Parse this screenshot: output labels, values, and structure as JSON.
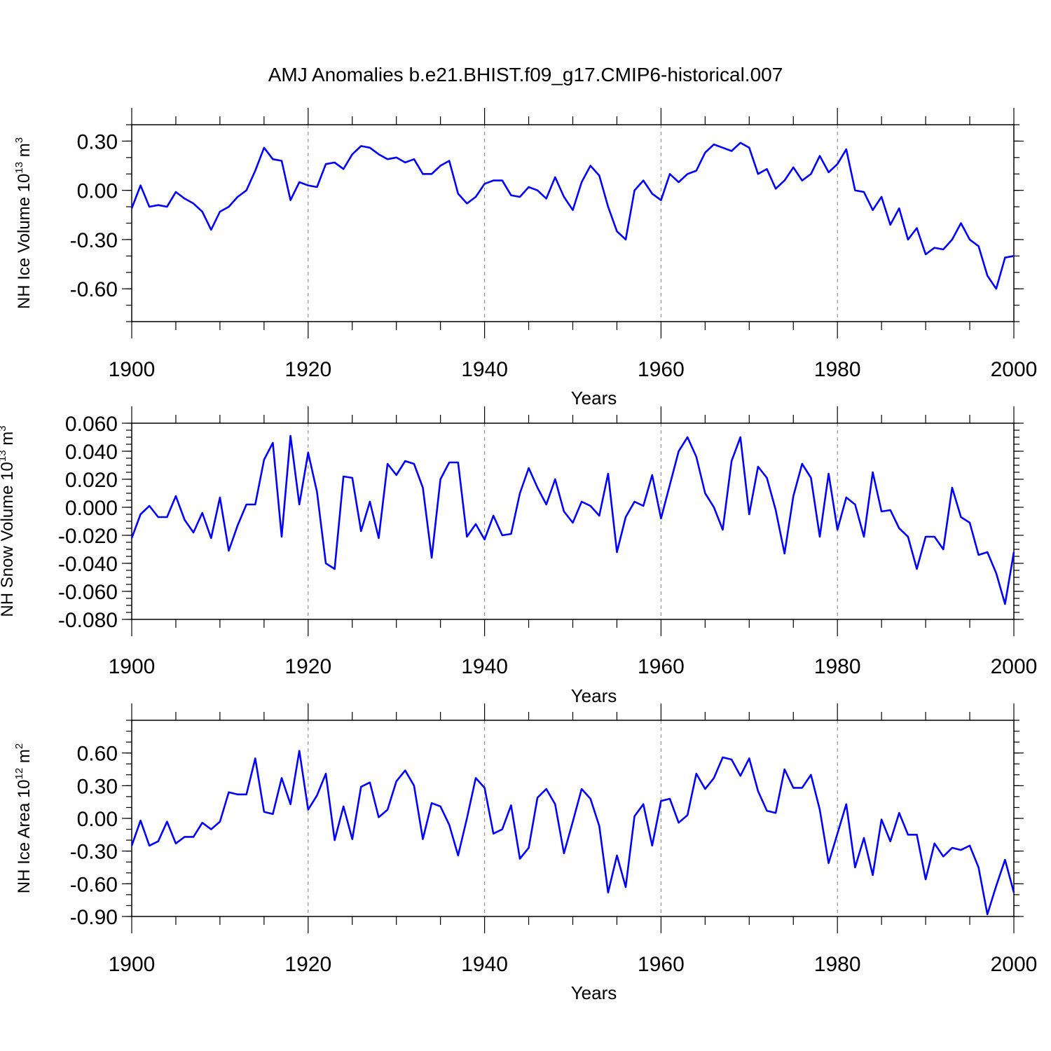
{
  "title": "AMJ Anomalies b.e21.BHIST.f09_g17.CMIP6-historical.007",
  "chart_data": [
    {
      "type": "line",
      "ylabel": "NH Ice Volume 10",
      "ylabel_sup": "13",
      "ylabel_unit": " m",
      "ylabel_unit_sup": "3",
      "xlabel": "Years",
      "xlim": [
        1900,
        2000
      ],
      "ylim": [
        -0.8,
        0.4
      ],
      "x_ticks": [
        1900,
        1920,
        1940,
        1960,
        1980,
        2000
      ],
      "y_ticks": [
        0.3,
        0.0,
        -0.3,
        -0.6
      ],
      "y_tick_labels": [
        "0.30",
        "0.00",
        "-0.30",
        "-0.60"
      ],
      "y_minor_step": 0.1,
      "grid": "vertical dashed at major x ticks",
      "series_color": "#0000ff",
      "x_start": 1900,
      "values": [
        -0.11,
        0.03,
        -0.1,
        -0.09,
        -0.1,
        -0.01,
        -0.05,
        -0.08,
        -0.13,
        -0.24,
        -0.13,
        -0.1,
        -0.04,
        0.0,
        0.12,
        0.26,
        0.19,
        0.18,
        -0.06,
        0.05,
        0.03,
        0.02,
        0.16,
        0.17,
        0.13,
        0.22,
        0.27,
        0.26,
        0.22,
        0.19,
        0.2,
        0.17,
        0.19,
        0.1,
        0.1,
        0.15,
        0.18,
        -0.02,
        -0.08,
        -0.04,
        0.04,
        0.06,
        0.06,
        -0.03,
        -0.04,
        0.02,
        0.0,
        -0.05,
        0.08,
        -0.04,
        -0.12,
        0.05,
        0.15,
        0.09,
        -0.1,
        -0.25,
        -0.3,
        0.0,
        0.06,
        -0.02,
        -0.06,
        0.1,
        0.05,
        0.1,
        0.12,
        0.23,
        0.28,
        0.26,
        0.24,
        0.29,
        0.26,
        0.1,
        0.13,
        0.01,
        0.06,
        0.14,
        0.06,
        0.1,
        0.21,
        0.11,
        0.16,
        0.25,
        0.0,
        -0.01,
        -0.12,
        -0.04,
        -0.21,
        -0.11,
        -0.3,
        -0.23,
        -0.39,
        -0.35,
        -0.36,
        -0.3,
        -0.2,
        -0.3,
        -0.34,
        -0.52,
        -0.6,
        -0.41,
        -0.4
      ]
    },
    {
      "type": "line",
      "ylabel": "NH Snow Volume 10",
      "ylabel_sup": "13",
      "ylabel_unit": " m",
      "ylabel_unit_sup": "3",
      "xlabel": "Years",
      "xlim": [
        1900,
        2000
      ],
      "ylim": [
        -0.08,
        0.06
      ],
      "x_ticks": [
        1900,
        1920,
        1940,
        1960,
        1980,
        2000
      ],
      "y_ticks": [
        0.06,
        0.04,
        0.02,
        0.0,
        -0.02,
        -0.04,
        -0.06,
        -0.08
      ],
      "y_tick_labels": [
        "0.060",
        "0.040",
        "0.020",
        "0.000",
        "-0.020",
        "-0.040",
        "-0.060",
        "-0.080"
      ],
      "y_minor_step": 0.005,
      "grid": "vertical dashed at major x ticks",
      "series_color": "#0000ff",
      "x_start": 1900,
      "values": [
        -0.022,
        -0.005,
        0.001,
        -0.007,
        -0.007,
        0.008,
        -0.009,
        -0.018,
        -0.004,
        -0.022,
        0.007,
        -0.031,
        -0.013,
        0.002,
        0.002,
        0.034,
        0.046,
        -0.021,
        0.051,
        0.002,
        0.039,
        0.011,
        -0.04,
        -0.044,
        0.022,
        0.021,
        -0.017,
        0.004,
        -0.022,
        0.031,
        0.023,
        0.033,
        0.031,
        0.014,
        -0.036,
        0.02,
        0.032,
        0.032,
        -0.021,
        -0.012,
        -0.023,
        -0.006,
        -0.02,
        -0.019,
        0.01,
        0.028,
        0.014,
        0.002,
        0.02,
        -0.003,
        -0.011,
        0.004,
        0.001,
        -0.006,
        0.024,
        -0.032,
        -0.007,
        0.004,
        0.001,
        0.023,
        -0.008,
        0.016,
        0.04,
        0.05,
        0.036,
        0.01,
        0.0,
        -0.016,
        0.033,
        0.05,
        -0.005,
        0.029,
        0.021,
        -0.002,
        -0.033,
        0.008,
        0.031,
        0.021,
        -0.021,
        0.024,
        -0.016,
        0.007,
        0.002,
        -0.021,
        0.025,
        -0.003,
        -0.002,
        -0.015,
        -0.021,
        -0.044,
        -0.021,
        -0.021,
        -0.03,
        0.014,
        -0.007,
        -0.011,
        -0.034,
        -0.032,
        -0.047,
        -0.069,
        -0.032
      ]
    },
    {
      "type": "line",
      "ylabel": "NH Ice Area 10",
      "ylabel_sup": "12",
      "ylabel_unit": " m",
      "ylabel_unit_sup": "2",
      "xlabel": "Years",
      "xlim": [
        1900,
        2000
      ],
      "ylim": [
        -0.9,
        0.9
      ],
      "x_ticks": [
        1900,
        1920,
        1940,
        1960,
        1980,
        2000
      ],
      "y_ticks": [
        0.6,
        0.3,
        0.0,
        -0.3,
        -0.6,
        -0.9
      ],
      "y_tick_labels": [
        "0.60",
        "0.30",
        "0.00",
        "-0.30",
        "-0.60",
        "-0.90"
      ],
      "y_minor_step": 0.1,
      "grid": "vertical dashed at major x ticks",
      "series_color": "#0000ff",
      "x_start": 1900,
      "values": [
        -0.25,
        -0.02,
        -0.25,
        -0.21,
        -0.03,
        -0.23,
        -0.17,
        -0.17,
        -0.04,
        -0.1,
        -0.03,
        0.24,
        0.22,
        0.22,
        0.55,
        0.06,
        0.04,
        0.37,
        0.13,
        0.62,
        0.08,
        0.21,
        0.41,
        -0.2,
        0.11,
        -0.19,
        0.29,
        0.33,
        0.01,
        0.08,
        0.34,
        0.44,
        0.3,
        -0.19,
        0.14,
        0.11,
        -0.06,
        -0.34,
        0.0,
        0.37,
        0.28,
        -0.14,
        -0.1,
        0.12,
        -0.37,
        -0.27,
        0.19,
        0.27,
        0.13,
        -0.32,
        -0.03,
        0.27,
        0.18,
        -0.07,
        -0.68,
        -0.34,
        -0.63,
        0.02,
        0.13,
        -0.25,
        0.16,
        0.18,
        -0.04,
        0.03,
        0.41,
        0.27,
        0.37,
        0.56,
        0.54,
        0.39,
        0.55,
        0.25,
        0.07,
        0.05,
        0.45,
        0.28,
        0.28,
        0.4,
        0.08,
        -0.41,
        -0.14,
        0.13,
        -0.45,
        -0.18,
        -0.52,
        -0.01,
        -0.21,
        0.05,
        -0.15,
        -0.15,
        -0.56,
        -0.23,
        -0.35,
        -0.27,
        -0.29,
        -0.25,
        -0.45,
        -0.88,
        -0.62,
        -0.38,
        -0.68
      ]
    }
  ]
}
